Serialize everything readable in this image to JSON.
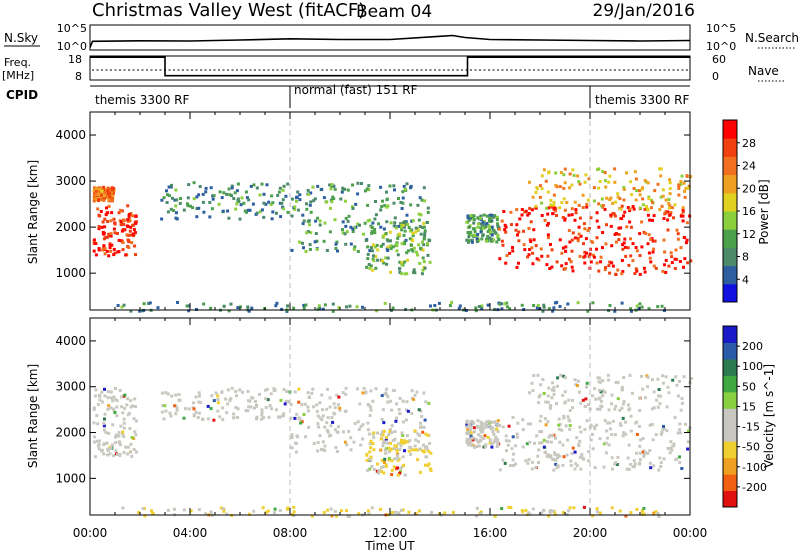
{
  "header": {
    "title": "Christmas Valley West (fitACF)",
    "beam": "Beam 04",
    "date": "29/Jan/2016"
  },
  "nsky_panel": {
    "left_label": "N.Sky",
    "right_label": "N.Search",
    "left_ticks": [
      "10^5",
      "10^0"
    ],
    "right_ticks": [
      "10^5",
      "10^0"
    ]
  },
  "freq_panel": {
    "left_label_1": "Freq.",
    "left_label_2": "[MHz]",
    "right_label": "Nave",
    "left_ticks": [
      "18",
      "8"
    ],
    "right_ticks": [
      "60",
      "0"
    ]
  },
  "cpid": {
    "label": "CPID",
    "segments": [
      {
        "name": "themis 3300 RF",
        "start_hour": 0,
        "end_hour": 8
      },
      {
        "name": "normal (fast) 151 RF",
        "start_hour": 8,
        "end_hour": 20
      },
      {
        "name": "themis 3300 RF",
        "start_hour": 20,
        "end_hour": 24
      }
    ]
  },
  "power_panel": {
    "ylabel": "Slant Range [km]",
    "yticks": [
      1000,
      2000,
      3000,
      4000
    ],
    "colorbar_label": "Power [dB]",
    "colorbar_ticks": [
      "4",
      "8",
      "12",
      "16",
      "20",
      "24",
      "28"
    ],
    "colors": [
      "#1010e0",
      "#2d5fa0",
      "#4c8a6a",
      "#4ca04c",
      "#8ccf3c",
      "#e0d020",
      "#f0a020",
      "#f07020",
      "#f04010",
      "#ff0000"
    ]
  },
  "velocity_panel": {
    "ylabel": "Slant Range [km]",
    "yticks": [
      1000,
      2000,
      3000,
      4000
    ],
    "colorbar_label": "Velocity [m s^-1]",
    "colorbar_ticks": [
      "200",
      "100",
      "50",
      "15",
      "-15",
      "-50",
      "-100",
      "-200"
    ],
    "colors": [
      "#1a1ac8",
      "#2a5aa8",
      "#2e7a50",
      "#40a840",
      "#88d040",
      "#c8c8c0",
      "#c8c8c0",
      "#f0d030",
      "#f0a020",
      "#f06010",
      "#e01010"
    ]
  },
  "xaxis": {
    "label": "Time UT",
    "ticks": [
      "00:00",
      "04:00",
      "08:00",
      "12:00",
      "16:00",
      "20:00",
      "00:00"
    ]
  },
  "chart_data": [
    {
      "type": "line",
      "title": "Christmas Valley West (fitACF)",
      "ylabel": "N.Sky",
      "x_hours": [
        0,
        0.1,
        2,
        4,
        6,
        8,
        10,
        12,
        14,
        14.5,
        15,
        16,
        18,
        20,
        22,
        24
      ],
      "nsky_level": [
        0.1,
        0.35,
        0.37,
        0.36,
        0.4,
        0.45,
        0.42,
        0.42,
        0.55,
        0.58,
        0.5,
        0.42,
        0.4,
        0.38,
        0.36,
        0.38
      ]
    },
    {
      "type": "line",
      "ylabel": "Freq. [MHz]",
      "ylim": [
        8,
        18
      ],
      "x_hours": [
        0,
        3,
        3,
        15.1,
        15.1,
        24
      ],
      "freq_mhz": [
        17.5,
        17.5,
        9.8,
        9.8,
        17.5,
        17.5
      ],
      "nave_level": "dotted"
    },
    {
      "type": "heatmap",
      "ylabel": "Slant Range [km]",
      "ylim": [
        200,
        4500
      ],
      "xlim_hours": [
        0,
        24
      ],
      "colorbar": "Power [dB]",
      "clim": [
        0,
        30
      ],
      "regions": [
        {
          "t0": 0.1,
          "t1": 1.8,
          "r0": 1400,
          "r1": 2500,
          "value": 26
        },
        {
          "t0": 0.1,
          "t1": 0.9,
          "r0": 2600,
          "r1": 2900,
          "value": 22
        },
        {
          "t0": 2.8,
          "t1": 8,
          "r0": 2200,
          "r1": 3000,
          "value": 8
        },
        {
          "t0": 8,
          "t1": 13.5,
          "r0": 1500,
          "r1": 3000,
          "value": 9
        },
        {
          "t0": 11,
          "t1": 13.6,
          "r0": 1000,
          "r1": 2200,
          "value": 12
        },
        {
          "t0": 15,
          "t1": 16.3,
          "r0": 1700,
          "r1": 2300,
          "value": 9
        },
        {
          "t0": 16.3,
          "t1": 24,
          "r0": 1000,
          "r1": 2500,
          "value": 27
        },
        {
          "t0": 17.5,
          "t1": 24,
          "r0": 2400,
          "r1": 3300,
          "value": 18
        },
        {
          "t0": 1,
          "t1": 23,
          "r0": 200,
          "r1": 400,
          "value": 8
        }
      ]
    },
    {
      "type": "heatmap",
      "ylabel": "Slant Range [km]",
      "ylim": [
        200,
        4500
      ],
      "xlim_hours": [
        0,
        24
      ],
      "colorbar": "Velocity [m s^-1]",
      "clim": [
        -200,
        200
      ],
      "regions": [
        {
          "t0": 0.1,
          "t1": 1.8,
          "r0": 1500,
          "r1": 3000,
          "value": 0
        },
        {
          "t0": 2.8,
          "t1": 8,
          "r0": 2300,
          "r1": 3000,
          "value": 0
        },
        {
          "t0": 8,
          "t1": 13.5,
          "r0": 1600,
          "r1": 3000,
          "value": 0
        },
        {
          "t0": 11,
          "t1": 13.6,
          "r0": 1100,
          "r1": 2100,
          "value": -40
        },
        {
          "t0": 15,
          "t1": 16.3,
          "r0": 1700,
          "r1": 2300,
          "value": 20
        },
        {
          "t0": 16.3,
          "t1": 24,
          "r0": 1200,
          "r1": 2400,
          "value": 0
        },
        {
          "t0": 17.5,
          "t1": 24,
          "r0": 2500,
          "r1": 3300,
          "value": 0
        },
        {
          "t0": 1,
          "t1": 23,
          "r0": 200,
          "r1": 400,
          "value": -30
        }
      ]
    }
  ]
}
